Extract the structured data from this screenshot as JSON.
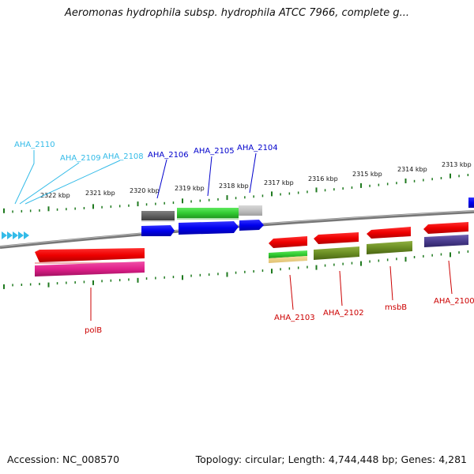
{
  "title": "Aeromonas hydrophila subsp. hydrophila ATCC 7966, complete g...",
  "footer": {
    "accession": "Accession: NC_008570",
    "topology": "Topology: circular; Length: 4,744,448 bp; Genes: 4,281"
  },
  "ruler": {
    "ticks": [
      "2322 kbp",
      "2321 kbp",
      "2320 kbp",
      "2319 kbp",
      "2318 kbp",
      "2317 kbp",
      "2316 kbp",
      "2315 kbp",
      "2314 kbp",
      "2313 kbp"
    ]
  },
  "genes": {
    "upper": [
      {
        "label": "AHA_2110",
        "color": "#33bbe8"
      },
      {
        "label": "AHA_2109",
        "color": "#33bbe8"
      },
      {
        "label": "AHA_2108",
        "color": "#33bbe8"
      },
      {
        "label": "AHA_2106",
        "color": "#0000cc"
      },
      {
        "label": "AHA_2105",
        "color": "#0000cc"
      },
      {
        "label": "AHA_2104",
        "color": "#0000cc"
      }
    ],
    "lower": [
      {
        "label": "polB",
        "color": "#cc0000"
      },
      {
        "label": "AHA_2103",
        "color": "#cc0000"
      },
      {
        "label": "AHA_2102",
        "color": "#cc0000"
      },
      {
        "label": "msbB",
        "color": "#cc0000"
      },
      {
        "label": "AHA_2100",
        "color": "#cc0000"
      }
    ]
  },
  "colors": {
    "tick": "#1f7a1f",
    "backbone": "#888888",
    "cds": "#0000ee",
    "cds_reverse": "#ee0000",
    "gene": "#606060",
    "cog_green": "#33cc33",
    "cog_olive": "#6b8e23",
    "cog_purple": "#4b3d8f",
    "cog_pink": "#e0208a"
  }
}
